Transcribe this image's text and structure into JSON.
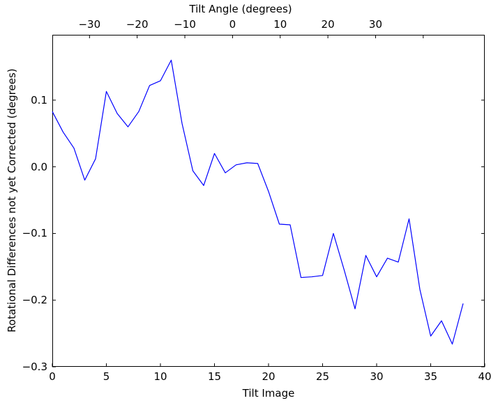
{
  "chart_data": {
    "type": "line",
    "title": "",
    "top_xlabel": "Tilt Angle (degrees)",
    "bottom_xlabel": "Tilt Image",
    "ylabel": "Rotational Differences not yet Corrected (degrees)",
    "bottom_xlim": [
      0,
      40
    ],
    "top_xlim": [
      -37.8,
      52.9
    ],
    "ylim": [
      -0.3,
      0.198
    ],
    "grid": false,
    "legend_position": "none",
    "line_color": "#0000ff",
    "axis_color": "#000000",
    "background_color": "#ffffff",
    "bottom_xticks": [
      {
        "value": 0,
        "label": "0"
      },
      {
        "value": 5,
        "label": "5"
      },
      {
        "value": 10,
        "label": "10"
      },
      {
        "value": 15,
        "label": "15"
      },
      {
        "value": 20,
        "label": "20"
      },
      {
        "value": 25,
        "label": "25"
      },
      {
        "value": 30,
        "label": "30"
      },
      {
        "value": 35,
        "label": "35"
      },
      {
        "value": 40,
        "label": "40"
      }
    ],
    "top_xticks": [
      {
        "value": -30,
        "label": "−30"
      },
      {
        "value": -20,
        "label": "−20"
      },
      {
        "value": -10,
        "label": "−10"
      },
      {
        "value": 0,
        "label": "0"
      },
      {
        "value": 10,
        "label": "10"
      },
      {
        "value": 20,
        "label": "20"
      },
      {
        "value": 30,
        "label": "30"
      },
      {
        "value": 40,
        "label": ""
      }
    ],
    "yticks": [
      {
        "value": 0.1,
        "label": "0.1"
      },
      {
        "value": 0.0,
        "label": "0.0"
      },
      {
        "value": -0.1,
        "label": "−0.1"
      },
      {
        "value": -0.2,
        "label": "−0.2"
      },
      {
        "value": -0.3,
        "label": "−0.3"
      }
    ],
    "series": [
      {
        "name": "rotational-difference-per-tilt-image",
        "color": "#0000ff",
        "x": [
          0,
          1,
          2,
          3,
          4,
          5,
          6,
          7,
          8,
          9,
          10,
          11,
          12,
          13,
          14,
          15,
          16,
          17,
          18,
          19,
          20,
          21,
          22,
          23,
          24,
          25,
          26,
          27,
          28,
          29,
          30,
          31,
          32,
          33,
          34,
          35,
          36,
          37,
          38
        ],
        "y": [
          0.083,
          0.052,
          0.028,
          -0.02,
          0.012,
          0.113,
          0.08,
          0.06,
          0.083,
          0.122,
          0.129,
          0.16,
          0.065,
          -0.006,
          -0.028,
          0.02,
          -0.009,
          0.003,
          0.006,
          0.005,
          -0.037,
          -0.086,
          -0.087,
          -0.166,
          -0.165,
          -0.163,
          -0.1,
          -0.155,
          -0.213,
          -0.133,
          -0.165,
          -0.137,
          -0.143,
          -0.078,
          -0.184,
          -0.254,
          -0.231,
          -0.266,
          -0.205
        ]
      }
    ]
  }
}
